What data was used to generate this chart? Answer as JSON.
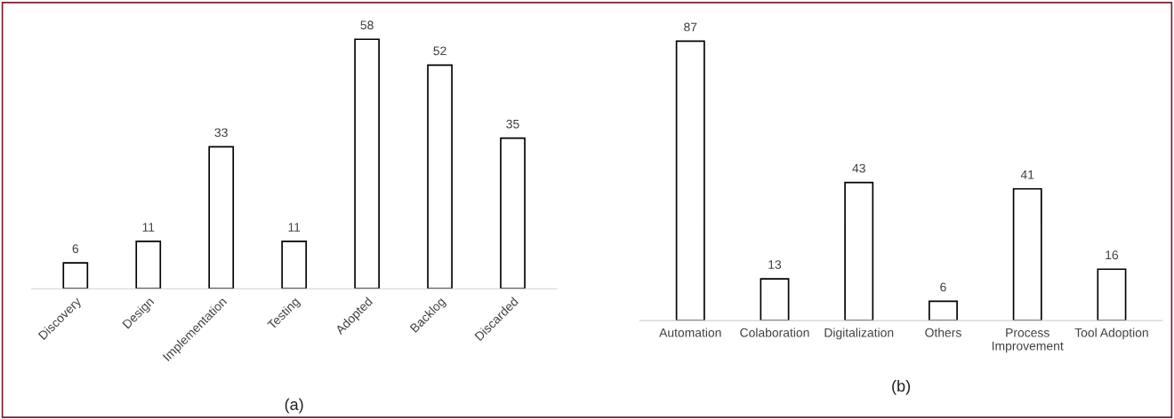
{
  "chart_data": [
    {
      "type": "bar",
      "xlabel": "(a)",
      "categories": [
        "Discovery",
        "Design",
        "Implementation",
        "Testing",
        "Adopted",
        "Backlog",
        "Discarded"
      ],
      "values": [
        6,
        11,
        33,
        11,
        58,
        52,
        35
      ],
      "color": "#ffffff",
      "data_labels": true,
      "grid": false,
      "legend": false
    },
    {
      "type": "bar",
      "xlabel": "(b)",
      "categories": [
        "Automation",
        "Colaboration",
        "Digitalization",
        "Others",
        "Process Improvement",
        "Tool Adoption"
      ],
      "values": [
        87,
        13,
        43,
        6,
        41,
        16
      ],
      "color": "#ffffff",
      "data_labels": true,
      "grid": false,
      "legend": false
    }
  ]
}
